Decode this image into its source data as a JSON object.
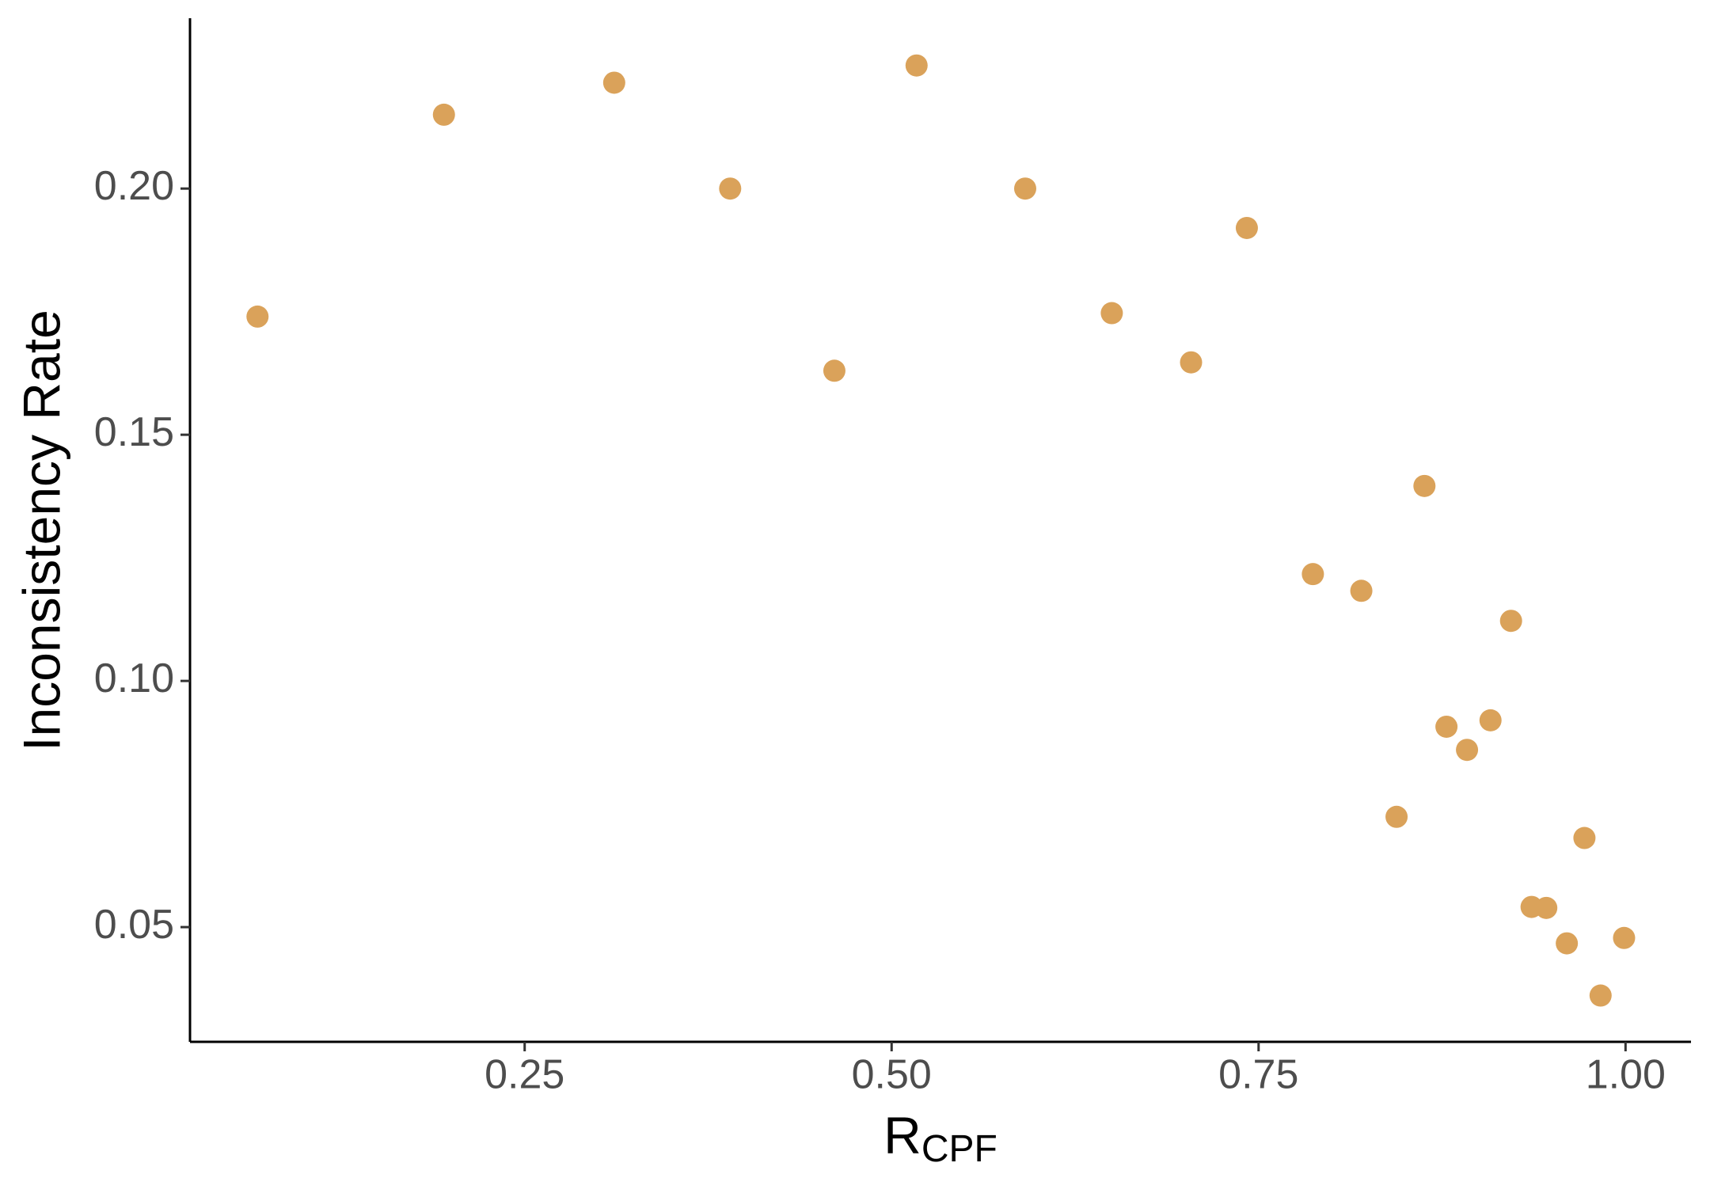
{
  "chart_data": {
    "type": "scatter",
    "xlabel": "R",
    "xlabel_subscript": "CPF",
    "ylabel": "Inconsistency Rate",
    "color": "#daa25a",
    "x": [
      0.068,
      0.195,
      0.311,
      0.39,
      0.461,
      0.517,
      0.591,
      0.65,
      0.704,
      0.742,
      0.863,
      0.787,
      0.82,
      0.922,
      0.878,
      0.908,
      0.892,
      0.844,
      0.972,
      0.936,
      0.946,
      0.96,
      0.999,
      0.983
    ],
    "values": [
      0.174,
      0.215,
      0.2215,
      0.2,
      0.163,
      0.225,
      0.2,
      0.1747,
      0.1647,
      0.192,
      0.1396,
      0.1217,
      0.1183,
      0.1122,
      0.0907,
      0.092,
      0.086,
      0.0724,
      0.0681,
      0.0541,
      0.0539,
      0.0467,
      0.0478,
      0.0361
    ],
    "xlim": [
      0.022,
      1.0446
    ],
    "ylim": [
      0.0267,
      0.2346
    ],
    "xticks": [
      0.25,
      {
        "value": 0.5,
        "label": "0.50"
      },
      0.75,
      {
        "value": 1,
        "label": "1.00"
      }
    ],
    "yticks": [
      0.05,
      {
        "value": 0.1,
        "label": "0.10"
      },
      0.15,
      {
        "value": 0.2,
        "label": "0.20"
      }
    ]
  }
}
